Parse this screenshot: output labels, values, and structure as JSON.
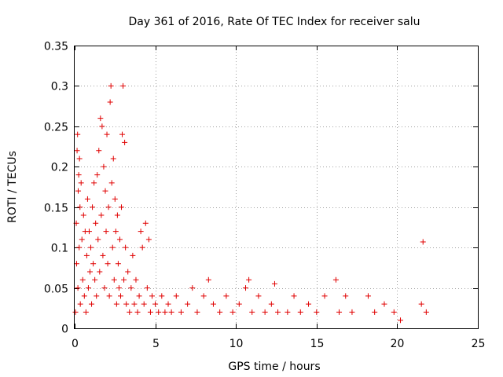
{
  "chart_data": {
    "type": "scatter",
    "title": "Day 361 of 2016, Rate Of TEC Index for receiver salu",
    "xlabel": "GPS time / hours",
    "ylabel": "ROTI / TECUs",
    "xlim": [
      0,
      25
    ],
    "ylim": [
      0,
      0.35
    ],
    "xticks": [
      0,
      5,
      10,
      15,
      20,
      25
    ],
    "xtick_labels": [
      "0",
      "5",
      "10",
      "15",
      "20",
      "25"
    ],
    "yticks": [
      0,
      0.05,
      0.1,
      0.15,
      0.2,
      0.25,
      0.3,
      0.35
    ],
    "ytick_labels": [
      "0",
      "0.05",
      "0.1",
      "0.15",
      "0.2",
      "0.25",
      "0.3",
      "0.35"
    ],
    "grid": true,
    "marker": "+",
    "color": "#e00000",
    "series": [
      {
        "name": "ROTI",
        "points": [
          [
            0.05,
            0.02
          ],
          [
            0.1,
            0.13
          ],
          [
            0.12,
            0.08
          ],
          [
            0.15,
            0.22
          ],
          [
            0.18,
            0.24
          ],
          [
            0.2,
            0.05
          ],
          [
            0.22,
            0.17
          ],
          [
            0.25,
            0.19
          ],
          [
            0.28,
            0.1
          ],
          [
            0.3,
            0.21
          ],
          [
            0.33,
            0.15
          ],
          [
            0.35,
            0.03
          ],
          [
            0.4,
            0.18
          ],
          [
            0.45,
            0.11
          ],
          [
            0.5,
            0.06
          ],
          [
            0.55,
            0.14
          ],
          [
            0.6,
            0.04
          ],
          [
            0.65,
            0.12
          ],
          [
            0.7,
            0.02
          ],
          [
            0.75,
            0.09
          ],
          [
            0.8,
            0.16
          ],
          [
            0.85,
            0.05
          ],
          [
            0.9,
            0.12
          ],
          [
            0.95,
            0.07
          ],
          [
            1.0,
            0.1
          ],
          [
            1.05,
            0.03
          ],
          [
            1.1,
            0.15
          ],
          [
            1.15,
            0.08
          ],
          [
            1.2,
            0.18
          ],
          [
            1.25,
            0.06
          ],
          [
            1.3,
            0.13
          ],
          [
            1.35,
            0.04
          ],
          [
            1.4,
            0.19
          ],
          [
            1.45,
            0.11
          ],
          [
            1.5,
            0.22
          ],
          [
            1.55,
            0.07
          ],
          [
            1.6,
            0.26
          ],
          [
            1.65,
            0.14
          ],
          [
            1.7,
            0.25
          ],
          [
            1.75,
            0.09
          ],
          [
            1.8,
            0.2
          ],
          [
            1.85,
            0.05
          ],
          [
            1.9,
            0.17
          ],
          [
            1.95,
            0.12
          ],
          [
            2.0,
            0.24
          ],
          [
            2.05,
            0.08
          ],
          [
            2.1,
            0.15
          ],
          [
            2.15,
            0.04
          ],
          [
            2.2,
            0.28
          ],
          [
            2.25,
            0.3
          ],
          [
            2.3,
            0.18
          ],
          [
            2.35,
            0.1
          ],
          [
            2.4,
            0.21
          ],
          [
            2.45,
            0.06
          ],
          [
            2.5,
            0.16
          ],
          [
            2.55,
            0.12
          ],
          [
            2.6,
            0.03
          ],
          [
            2.65,
            0.14
          ],
          [
            2.7,
            0.08
          ],
          [
            2.75,
            0.05
          ],
          [
            2.8,
            0.11
          ],
          [
            2.85,
            0.04
          ],
          [
            2.9,
            0.15
          ],
          [
            2.95,
            0.24
          ],
          [
            3.0,
            0.3
          ],
          [
            3.05,
            0.06
          ],
          [
            3.1,
            0.23
          ],
          [
            3.15,
            0.1
          ],
          [
            3.2,
            0.03
          ],
          [
            3.3,
            0.07
          ],
          [
            3.4,
            0.02
          ],
          [
            3.5,
            0.05
          ],
          [
            3.6,
            0.09
          ],
          [
            3.7,
            0.03
          ],
          [
            3.8,
            0.06
          ],
          [
            3.9,
            0.02
          ],
          [
            4.0,
            0.04
          ],
          [
            4.1,
            0.12
          ],
          [
            4.2,
            0.1
          ],
          [
            4.3,
            0.03
          ],
          [
            4.4,
            0.13
          ],
          [
            4.5,
            0.05
          ],
          [
            4.6,
            0.11
          ],
          [
            4.7,
            0.02
          ],
          [
            4.8,
            0.04
          ],
          [
            5.0,
            0.03
          ],
          [
            5.2,
            0.02
          ],
          [
            5.4,
            0.04
          ],
          [
            5.6,
            0.02
          ],
          [
            5.8,
            0.03
          ],
          [
            6.0,
            0.02
          ],
          [
            6.3,
            0.04
          ],
          [
            6.6,
            0.02
          ],
          [
            7.0,
            0.03
          ],
          [
            7.3,
            0.05
          ],
          [
            7.6,
            0.02
          ],
          [
            8.0,
            0.04
          ],
          [
            8.3,
            0.06
          ],
          [
            8.6,
            0.03
          ],
          [
            9.0,
            0.02
          ],
          [
            9.4,
            0.04
          ],
          [
            9.8,
            0.02
          ],
          [
            10.2,
            0.03
          ],
          [
            10.6,
            0.05
          ],
          [
            10.8,
            0.06
          ],
          [
            11.0,
            0.02
          ],
          [
            11.4,
            0.04
          ],
          [
            11.8,
            0.02
          ],
          [
            12.2,
            0.03
          ],
          [
            12.4,
            0.055
          ],
          [
            12.6,
            0.02
          ],
          [
            13.2,
            0.02
          ],
          [
            13.6,
            0.04
          ],
          [
            14.0,
            0.02
          ],
          [
            14.5,
            0.03
          ],
          [
            15.0,
            0.02
          ],
          [
            15.5,
            0.04
          ],
          [
            16.2,
            0.06
          ],
          [
            16.4,
            0.02
          ],
          [
            16.8,
            0.04
          ],
          [
            17.2,
            0.02
          ],
          [
            18.2,
            0.04
          ],
          [
            18.6,
            0.02
          ],
          [
            19.2,
            0.03
          ],
          [
            19.8,
            0.02
          ],
          [
            20.2,
            0.01
          ],
          [
            21.5,
            0.03
          ],
          [
            21.6,
            0.107
          ],
          [
            21.8,
            0.02
          ]
        ]
      }
    ]
  }
}
